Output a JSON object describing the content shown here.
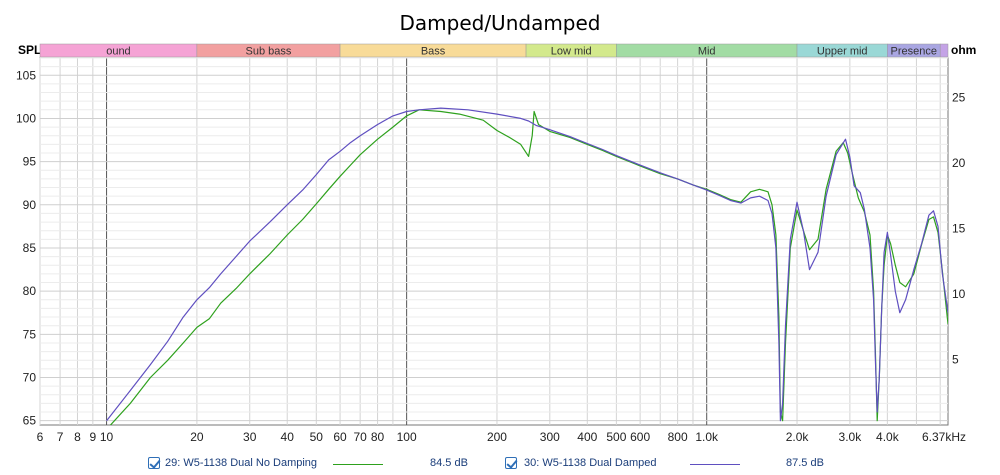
{
  "chart_data": {
    "type": "line",
    "title": "Damped/Undamped",
    "ylabel": "SPL",
    "y2label": "ohm",
    "x_unit": "kHz",
    "x_scale": "log",
    "xlim": [
      6,
      6370
    ],
    "ylim": [
      64.5,
      107
    ],
    "y2lim": [
      0,
      28
    ],
    "grid": true,
    "x_ticks": [
      {
        "v": 6,
        "label": "6"
      },
      {
        "v": 7,
        "label": "7"
      },
      {
        "v": 8,
        "label": "8"
      },
      {
        "v": 9,
        "label": "9"
      },
      {
        "v": 10,
        "label": "10"
      },
      {
        "v": 20,
        "label": "20"
      },
      {
        "v": 30,
        "label": "30"
      },
      {
        "v": 40,
        "label": "40"
      },
      {
        "v": 50,
        "label": "50"
      },
      {
        "v": 60,
        "label": "60"
      },
      {
        "v": 70,
        "label": "70"
      },
      {
        "v": 80,
        "label": "80"
      },
      {
        "v": 100,
        "label": "100"
      },
      {
        "v": 200,
        "label": "200"
      },
      {
        "v": 300,
        "label": "300"
      },
      {
        "v": 400,
        "label": "400"
      },
      {
        "v": 500,
        "label": "500"
      },
      {
        "v": 600,
        "label": "600"
      },
      {
        "v": 800,
        "label": "800"
      },
      {
        "v": 1000,
        "label": "1.0k"
      },
      {
        "v": 2000,
        "label": "2.0k"
      },
      {
        "v": 3000,
        "label": "3.0k"
      },
      {
        "v": 4000,
        "label": "4.0k"
      },
      {
        "v": 6370,
        "label": "6.37kHz"
      }
    ],
    "y_ticks": [
      65,
      70,
      75,
      80,
      85,
      90,
      95,
      100,
      105
    ],
    "y2_ticks": [
      5,
      10,
      15,
      20,
      25
    ],
    "bands": [
      {
        "label": "ound",
        "from": 6,
        "to": 20,
        "color": "#f5a3d5"
      },
      {
        "label": "Sub bass",
        "from": 20,
        "to": 60,
        "color": "#f2a0a0"
      },
      {
        "label": "Bass",
        "from": 60,
        "to": 250,
        "color": "#f8db98"
      },
      {
        "label": "Low mid",
        "from": 250,
        "to": 500,
        "color": "#d3e98c"
      },
      {
        "label": "Mid",
        "from": 500,
        "to": 2000,
        "color": "#a2dca4"
      },
      {
        "label": "Upper mid",
        "from": 2000,
        "to": 4000,
        "color": "#9ad8d6"
      },
      {
        "label": "Presence",
        "from": 4000,
        "to": 6000,
        "color": "#a9a6e2"
      },
      {
        "label": "",
        "from": 6000,
        "to": 6370,
        "color": "#c4a3e6"
      }
    ],
    "series": [
      {
        "name": "29: W5-1138 Dual No Damping",
        "legend_value": "84.5 dB",
        "color": "#2ea11d",
        "points": [
          [
            10,
            64
          ],
          [
            12,
            67
          ],
          [
            14,
            70
          ],
          [
            16,
            72
          ],
          [
            18,
            74
          ],
          [
            20,
            75.8
          ],
          [
            22,
            76.8
          ],
          [
            24,
            78.6
          ],
          [
            27,
            80.3
          ],
          [
            30,
            82
          ],
          [
            35,
            84.3
          ],
          [
            40,
            86.5
          ],
          [
            45,
            88.3
          ],
          [
            50,
            90.1
          ],
          [
            55,
            91.8
          ],
          [
            60,
            93.3
          ],
          [
            65,
            94.6
          ],
          [
            70,
            95.8
          ],
          [
            80,
            97.6
          ],
          [
            90,
            99
          ],
          [
            100,
            100.3
          ],
          [
            110,
            101
          ],
          [
            130,
            100.8
          ],
          [
            150,
            100.5
          ],
          [
            180,
            99.8
          ],
          [
            200,
            98.6
          ],
          [
            220,
            97.8
          ],
          [
            240,
            97
          ],
          [
            255,
            95.6
          ],
          [
            262,
            98
          ],
          [
            266,
            100.8
          ],
          [
            275,
            99.3
          ],
          [
            300,
            98.5
          ],
          [
            350,
            97.8
          ],
          [
            400,
            97
          ],
          [
            450,
            96.3
          ],
          [
            500,
            95.6
          ],
          [
            600,
            94.5
          ],
          [
            700,
            93.6
          ],
          [
            800,
            93
          ],
          [
            900,
            92.3
          ],
          [
            1000,
            91.8
          ],
          [
            1100,
            91.2
          ],
          [
            1200,
            90.6
          ],
          [
            1300,
            90.3
          ],
          [
            1400,
            91.5
          ],
          [
            1500,
            91.8
          ],
          [
            1600,
            91.5
          ],
          [
            1650,
            90
          ],
          [
            1700,
            86.5
          ],
          [
            1740,
            77
          ],
          [
            1760,
            66
          ],
          [
            1790,
            65
          ],
          [
            1830,
            74
          ],
          [
            1900,
            85
          ],
          [
            2000,
            89.4
          ],
          [
            2100,
            87
          ],
          [
            2200,
            84.8
          ],
          [
            2350,
            86
          ],
          [
            2500,
            91.8
          ],
          [
            2700,
            96.2
          ],
          [
            2850,
            97.2
          ],
          [
            2950,
            96
          ],
          [
            3050,
            93.8
          ],
          [
            3200,
            90.8
          ],
          [
            3350,
            89.2
          ],
          [
            3500,
            86.5
          ],
          [
            3600,
            80
          ],
          [
            3650,
            73
          ],
          [
            3700,
            65
          ],
          [
            3760,
            70
          ],
          [
            3830,
            78
          ],
          [
            3900,
            83
          ],
          [
            4000,
            86.5
          ],
          [
            4100,
            85.5
          ],
          [
            4250,
            83
          ],
          [
            4400,
            81
          ],
          [
            4600,
            80.5
          ],
          [
            4900,
            82
          ],
          [
            5200,
            85.4
          ],
          [
            5500,
            88.3
          ],
          [
            5700,
            88.6
          ],
          [
            5900,
            86.8
          ],
          [
            6100,
            82.3
          ],
          [
            6370,
            76.2
          ]
        ]
      },
      {
        "name": "30: W5-1138 Dual Damped",
        "legend_value": "87.5 dB",
        "color": "#5f4fc0",
        "points": [
          [
            10,
            65
          ],
          [
            12,
            68.5
          ],
          [
            14,
            71.5
          ],
          [
            16,
            74.2
          ],
          [
            18,
            77
          ],
          [
            20,
            79
          ],
          [
            22,
            80.4
          ],
          [
            24,
            82
          ],
          [
            27,
            84
          ],
          [
            30,
            85.8
          ],
          [
            35,
            88
          ],
          [
            40,
            90
          ],
          [
            45,
            91.7
          ],
          [
            50,
            93.5
          ],
          [
            55,
            95.2
          ],
          [
            60,
            96.2
          ],
          [
            65,
            97.2
          ],
          [
            70,
            98
          ],
          [
            80,
            99.3
          ],
          [
            90,
            100.3
          ],
          [
            100,
            100.8
          ],
          [
            110,
            101
          ],
          [
            130,
            101.2
          ],
          [
            160,
            101
          ],
          [
            200,
            100.5
          ],
          [
            240,
            100
          ],
          [
            255,
            99.7
          ],
          [
            270,
            99.2
          ],
          [
            300,
            98.7
          ],
          [
            350,
            97.9
          ],
          [
            400,
            97.1
          ],
          [
            450,
            96.4
          ],
          [
            500,
            95.7
          ],
          [
            600,
            94.6
          ],
          [
            700,
            93.7
          ],
          [
            800,
            93
          ],
          [
            900,
            92.3
          ],
          [
            1000,
            91.7
          ],
          [
            1100,
            91.1
          ],
          [
            1200,
            90.5
          ],
          [
            1300,
            90.2
          ],
          [
            1400,
            90.8
          ],
          [
            1500,
            91
          ],
          [
            1600,
            90.5
          ],
          [
            1650,
            89
          ],
          [
            1700,
            85
          ],
          [
            1740,
            74
          ],
          [
            1760,
            65
          ],
          [
            1790,
            67
          ],
          [
            1830,
            76
          ],
          [
            1900,
            86
          ],
          [
            2000,
            90.3
          ],
          [
            2100,
            87
          ],
          [
            2200,
            82.5
          ],
          [
            2350,
            84.5
          ],
          [
            2500,
            91
          ],
          [
            2700,
            95.8
          ],
          [
            2900,
            97.6
          ],
          [
            3000,
            95.5
          ],
          [
            3100,
            92.2
          ],
          [
            3250,
            91.4
          ],
          [
            3350,
            89.5
          ],
          [
            3500,
            85
          ],
          [
            3600,
            79
          ],
          [
            3650,
            72
          ],
          [
            3700,
            66
          ],
          [
            3760,
            70
          ],
          [
            3830,
            78
          ],
          [
            3900,
            84.5
          ],
          [
            4000,
            86.8
          ],
          [
            4100,
            84.2
          ],
          [
            4250,
            80
          ],
          [
            4400,
            77.5
          ],
          [
            4600,
            79
          ],
          [
            4900,
            82.5
          ],
          [
            5200,
            85.5
          ],
          [
            5500,
            88.8
          ],
          [
            5700,
            89.3
          ],
          [
            5900,
            87.5
          ],
          [
            6100,
            82
          ],
          [
            6370,
            77.5
          ]
        ]
      }
    ]
  }
}
